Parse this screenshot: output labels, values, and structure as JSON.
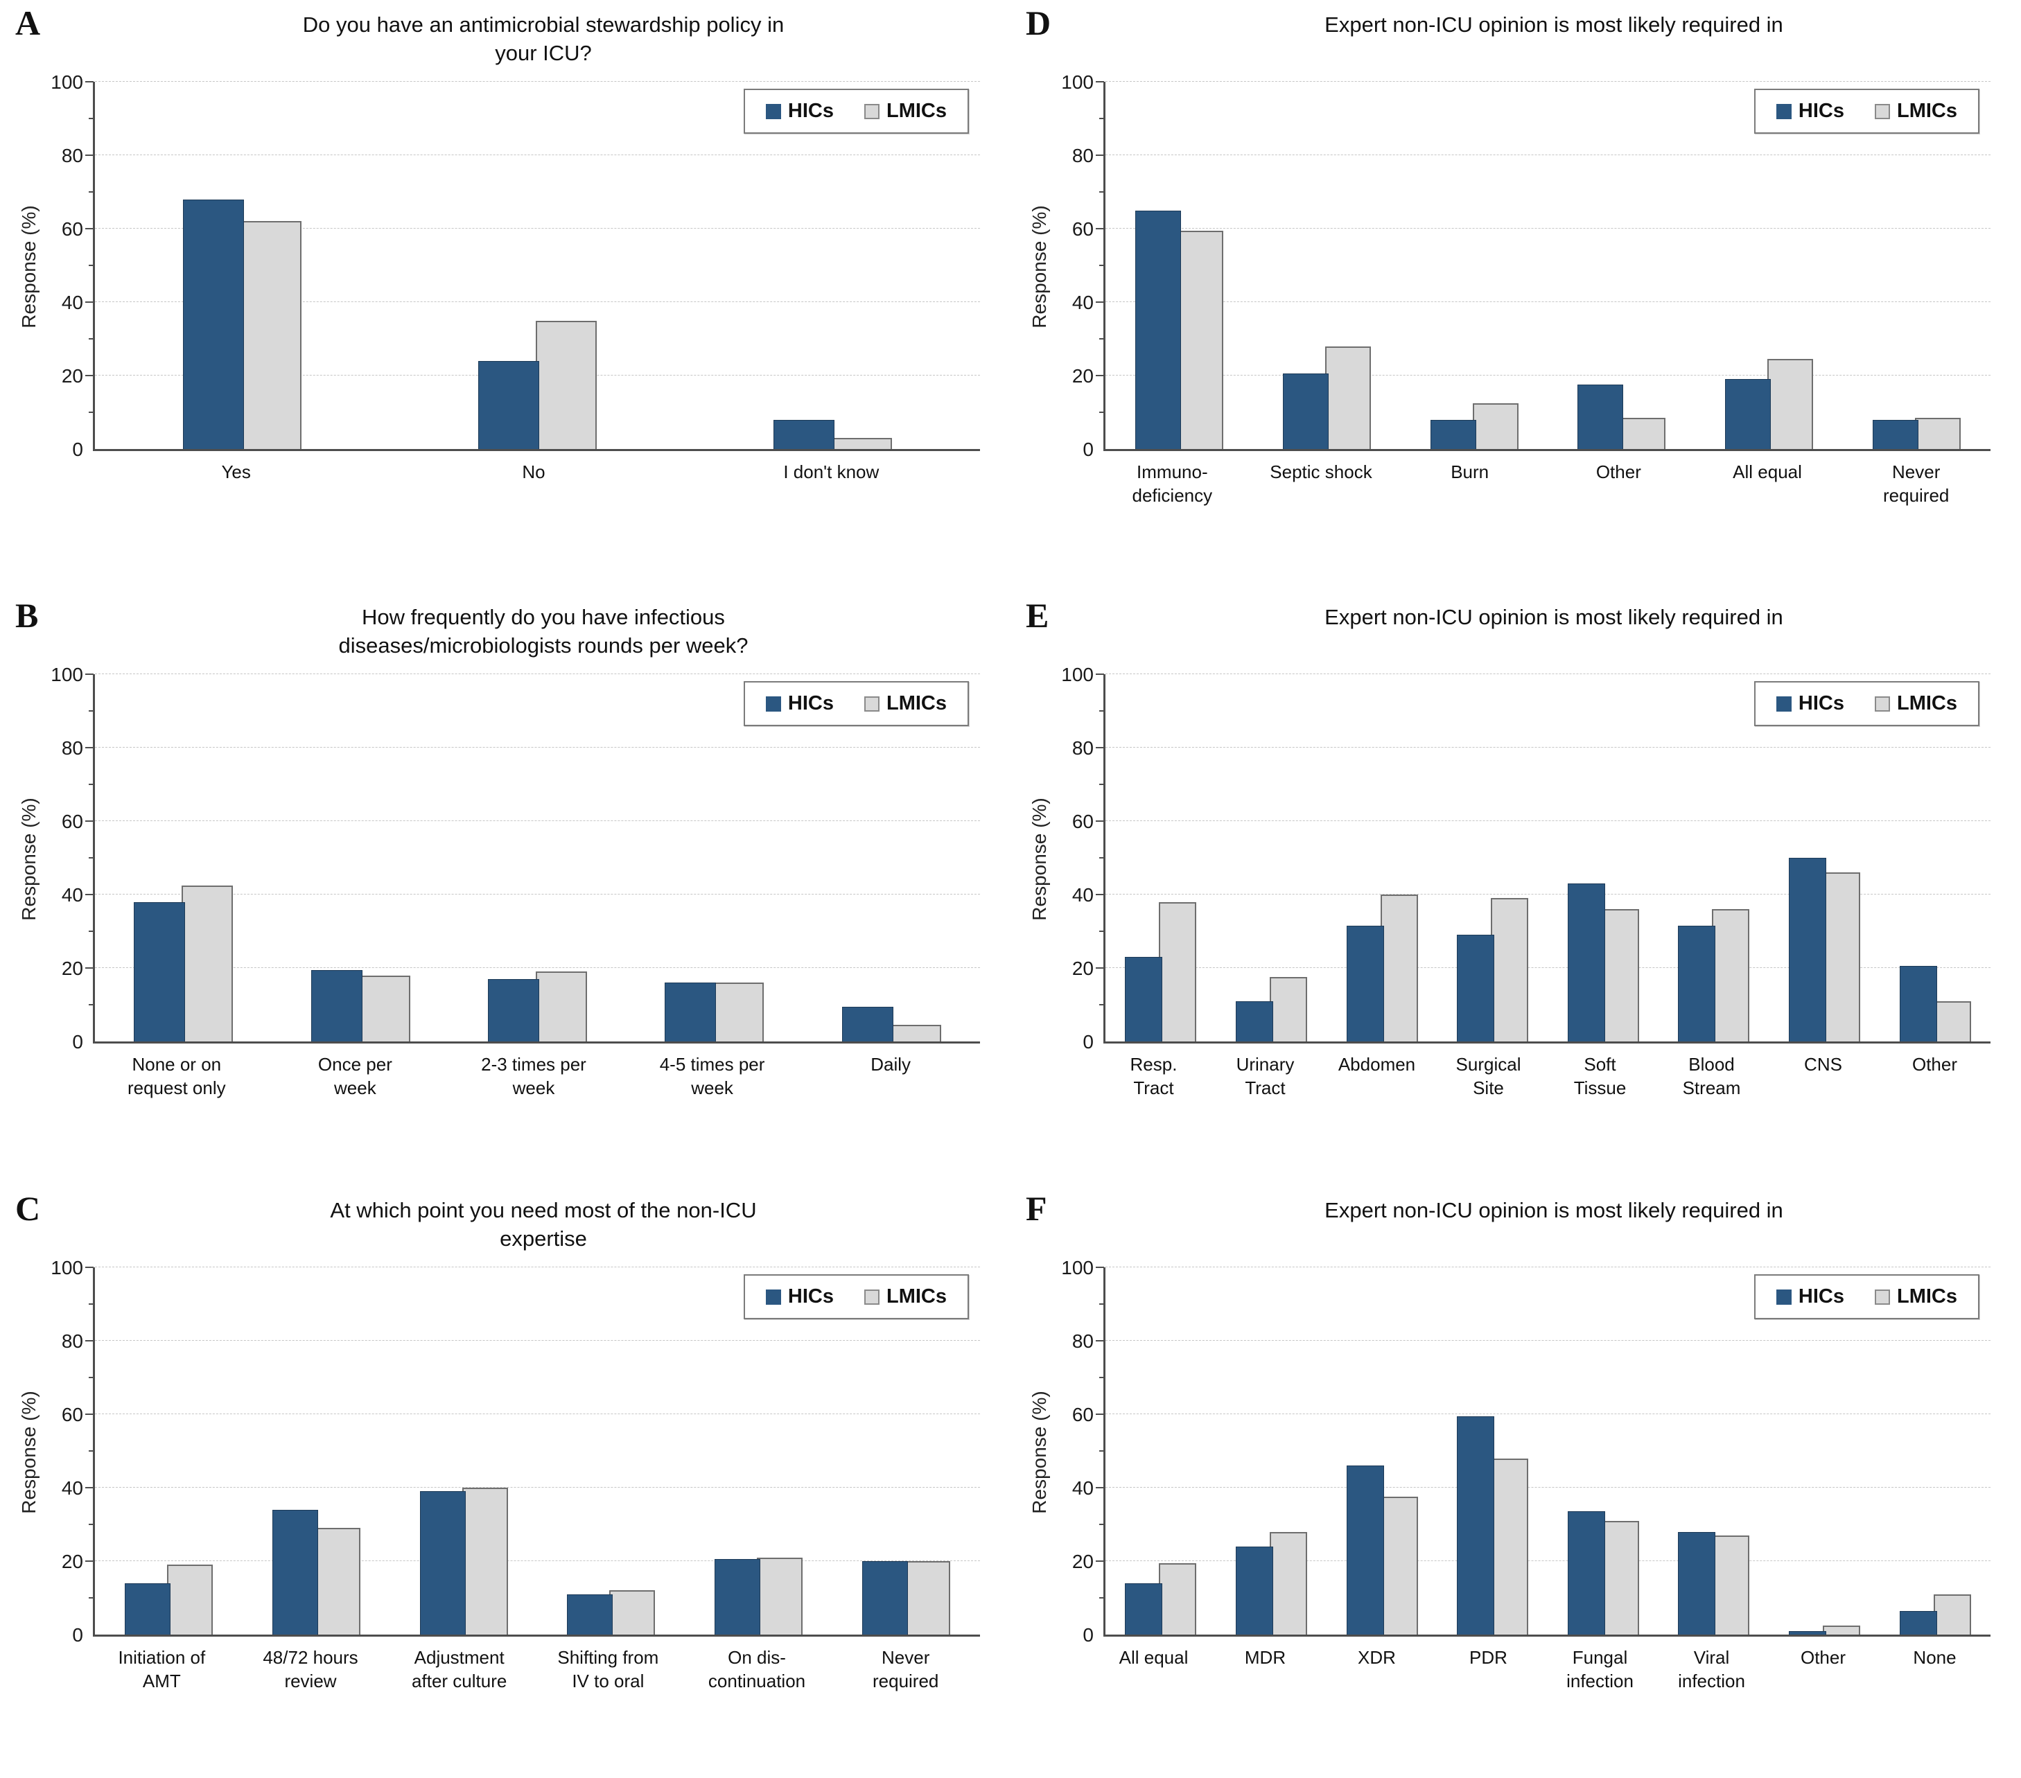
{
  "figure": {
    "ylabel": "Response (%)",
    "legend": [
      "HICs",
      "LMICs"
    ],
    "y_ticks": [
      0,
      20,
      40,
      60,
      80,
      100
    ],
    "colors": {
      "hics": "#2B5781",
      "lmics": "#D9D9D9",
      "lmics_border": "#6E6E6E",
      "axis": "#4D4D4D",
      "gridline": "#C6C6C6"
    }
  },
  "chart_data": [
    {
      "type": "bar",
      "panel": "A",
      "title": "Do you have an antimicrobial stewardship policy in\nyour ICU?",
      "categories": [
        "Yes",
        "No",
        "I don't know"
      ],
      "series": [
        {
          "name": "HICs",
          "values": [
            68,
            24,
            8
          ]
        },
        {
          "name": "LMICs",
          "values": [
            62,
            35,
            3
          ]
        }
      ],
      "xlabel": "",
      "ylabel": "Response (%)",
      "ylim": [
        0,
        100
      ],
      "grid": true,
      "legend_position": "top-right"
    },
    {
      "type": "bar",
      "panel": "D",
      "title": "Expert non-ICU opinion is most likely required in",
      "categories": [
        "Immuno-\ndeficiency",
        "Septic shock",
        "Burn",
        "Other",
        "All equal",
        "Never\nrequired"
      ],
      "series": [
        {
          "name": "HICs",
          "values": [
            65,
            20.5,
            8,
            17.5,
            19,
            8
          ]
        },
        {
          "name": "LMICs",
          "values": [
            59.5,
            28,
            12.5,
            8.5,
            24.5,
            8.5
          ]
        }
      ],
      "xlabel": "",
      "ylabel": "Response (%)",
      "ylim": [
        0,
        100
      ],
      "grid": true,
      "legend_position": "top-right"
    },
    {
      "type": "bar",
      "panel": "B",
      "title": "How frequently do you have infectious\ndiseases/microbiologists rounds per week?",
      "categories": [
        "None or on\nrequest only",
        "Once per\nweek",
        "2-3 times per\nweek",
        "4-5 times per\nweek",
        "Daily"
      ],
      "series": [
        {
          "name": "HICs",
          "values": [
            38,
            19.5,
            17,
            16,
            9.5
          ]
        },
        {
          "name": "LMICs",
          "values": [
            42.5,
            18,
            19,
            16,
            4.5
          ]
        }
      ],
      "xlabel": "",
      "ylabel": "Response (%)",
      "ylim": [
        0,
        100
      ],
      "grid": true,
      "legend_position": "top-right"
    },
    {
      "type": "bar",
      "panel": "E",
      "title": "Expert non-ICU opinion is most likely required in",
      "categories": [
        "Resp.\nTract",
        "Urinary\nTract",
        "Abdomen",
        "Surgical\nSite",
        "Soft\nTissue",
        "Blood\nStream",
        "CNS",
        "Other"
      ],
      "series": [
        {
          "name": "HICs",
          "values": [
            23,
            11,
            31.5,
            29,
            43,
            31.5,
            50,
            20.5
          ]
        },
        {
          "name": "LMICs",
          "values": [
            38,
            17.5,
            40,
            39,
            36,
            36,
            46,
            11
          ]
        }
      ],
      "xlabel": "",
      "ylabel": "Response (%)",
      "ylim": [
        0,
        100
      ],
      "grid": true,
      "legend_position": "top-right"
    },
    {
      "type": "bar",
      "panel": "C",
      "title": "At which point you need most of the non-ICU\nexpertise",
      "categories": [
        "Initiation of\nAMT",
        "48/72 hours\nreview",
        "Adjustment\nafter culture",
        "Shifting from\nIV to oral",
        "On dis-\ncontinuation",
        "Never\nrequired"
      ],
      "series": [
        {
          "name": "HICs",
          "values": [
            14,
            34,
            39,
            11,
            20.5,
            20
          ]
        },
        {
          "name": "LMICs",
          "values": [
            19,
            29,
            40,
            12,
            21,
            20
          ]
        }
      ],
      "xlabel": "",
      "ylabel": "Response (%)",
      "ylim": [
        0,
        100
      ],
      "grid": true,
      "legend_position": "top-right"
    },
    {
      "type": "bar",
      "panel": "F",
      "title": "Expert non-ICU opinion is most likely required in",
      "categories": [
        "All equal",
        "MDR",
        "XDR",
        "PDR",
        "Fungal\ninfection",
        "Viral\ninfection",
        "Other",
        "None"
      ],
      "series": [
        {
          "name": "HICs",
          "values": [
            14,
            24,
            46,
            59.5,
            33.5,
            28,
            1,
            6.5
          ]
        },
        {
          "name": "LMICs",
          "values": [
            19.5,
            28,
            37.5,
            48,
            31,
            27,
            2.5,
            11
          ]
        }
      ],
      "xlabel": "",
      "ylabel": "Response (%)",
      "ylim": [
        0,
        100
      ],
      "grid": true,
      "legend_position": "top-right"
    }
  ]
}
